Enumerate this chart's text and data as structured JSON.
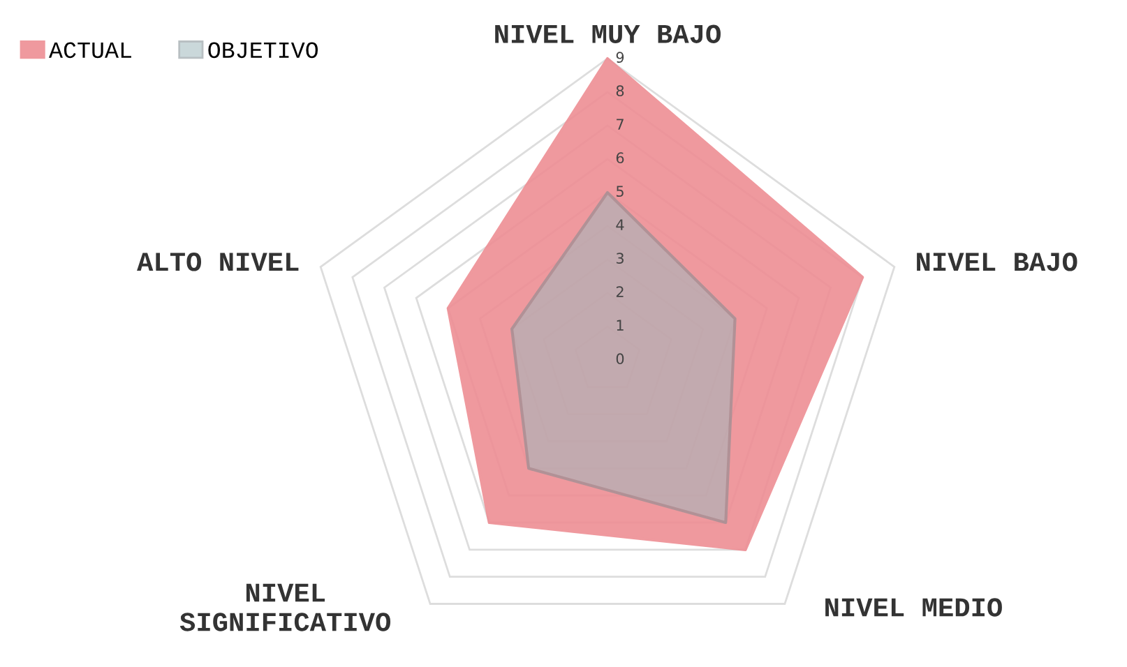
{
  "chart_data": {
    "type": "radar",
    "categories": [
      "NIVEL MUY BAJO",
      "NIVEL BAJO",
      "NIVEL MEDIO",
      "NIVEL\nSIGNIFICATIVO",
      "ALTO NIVEL"
    ],
    "series": [
      {
        "name": "ACTUAL",
        "color": "#ee8e94",
        "values": [
          9,
          8,
          7,
          6,
          5
        ]
      },
      {
        "name": "OBJETIVO",
        "color": "#9fb9bd",
        "values": [
          5,
          4,
          6,
          4,
          3
        ]
      }
    ],
    "ylim": [
      0,
      9
    ],
    "yticks": [
      0,
      1,
      2,
      3,
      4,
      5,
      6,
      7,
      8,
      9
    ],
    "legend": "top left",
    "grid": true
  }
}
